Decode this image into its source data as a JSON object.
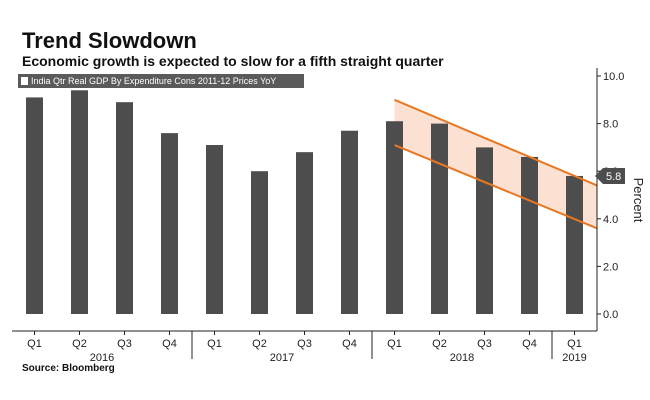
{
  "header": {
    "title": "Trend Slowdown",
    "subtitle": "Economic growth is expected to slow for a fifth straight quarter",
    "source": "Source: Bloomberg"
  },
  "colors": {
    "bar": "#4d4d4d",
    "trend_line": "#e87722",
    "trend_fill": "#fbdccb",
    "axis": "#222222",
    "legend_bg": "#5a5a5a",
    "callout_bg": "#4d4d4d"
  },
  "chart_data": {
    "type": "bar",
    "title": "Trend Slowdown",
    "subtitle": "Economic growth is expected to slow for a fifth straight quarter",
    "legend": "India Qtr Real GDP By Expenditure Cons 2011-12 Prices YoY",
    "ylabel": "Percent",
    "ylim": [
      -0.5,
      10.0
    ],
    "yticks": [
      0.0,
      2.0,
      4.0,
      6.0,
      8.0,
      10.0
    ],
    "ytick_labels": [
      "0.0",
      "2.0",
      "4.0",
      "6.0",
      "8.0",
      "10.0"
    ],
    "categories": [
      "Q1",
      "Q2",
      "Q3",
      "Q4",
      "Q1",
      "Q2",
      "Q3",
      "Q4",
      "Q1",
      "Q2",
      "Q3",
      "Q4",
      "Q1"
    ],
    "years": [
      {
        "label": "2016",
        "from": 0,
        "to": 3
      },
      {
        "label": "2017",
        "from": 4,
        "to": 7
      },
      {
        "label": "2018",
        "from": 8,
        "to": 11
      },
      {
        "label": "2019",
        "from": 12,
        "to": 12
      }
    ],
    "values": [
      9.1,
      9.4,
      8.9,
      7.6,
      7.1,
      6.0,
      6.8,
      7.7,
      8.1,
      8.0,
      7.0,
      6.6,
      5.8
    ],
    "callout": {
      "label": "5.8",
      "value": 5.8
    },
    "trend_channel": {
      "upper": {
        "from_index": 8,
        "from_value": 9.0,
        "to_index": 13,
        "to_value": 5.4
      },
      "lower": {
        "from_index": 8,
        "from_value": 7.1,
        "to_index": 13,
        "to_value": 3.6
      }
    }
  }
}
